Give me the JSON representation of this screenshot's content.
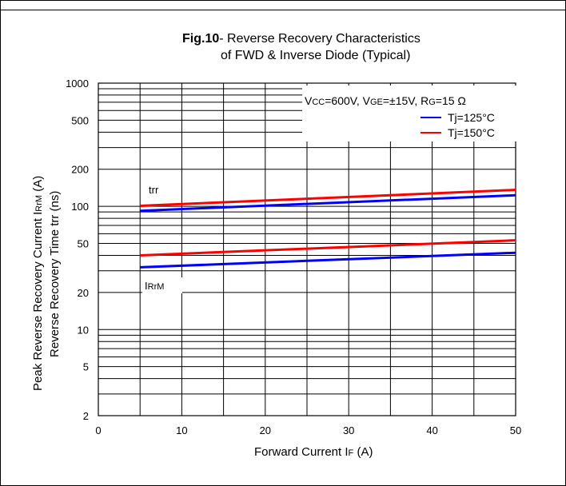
{
  "chart_data": {
    "type": "line",
    "title_bold": "Fig.10",
    "title_rest": "- Reverse Recovery Characteristics",
    "title_line2": "of FWD & Inverse Diode  (Typical)",
    "xlabel": "Forward Current I",
    "xlabel_sub": "F",
    "xlabel_unit": "  (A)",
    "ylabel_line1": "Peak Reverse Recovery Current  I",
    "ylabel_line1_sub": "RrM",
    "ylabel_line1_unit": " (A)",
    "ylabel_line2": "Reverse Recovery Time trr  (ns)",
    "xlim": [
      0,
      50
    ],
    "ylim": [
      2,
      1000
    ],
    "yscale": "log",
    "x_ticks": [
      "0",
      "10",
      "20",
      "30",
      "40",
      "50"
    ],
    "y_ticks": [
      "2",
      "5",
      "10",
      "20",
      "50",
      "100",
      "200",
      "500",
      "1000"
    ],
    "condition": {
      "vcc_label": "V",
      "vcc_sub": "CC",
      "vcc_value": "=600V, V",
      "vge_sub": "GE",
      "vge_value": "=±15V, R",
      "rg_sub": "G",
      "rg_value": "=15 Ω"
    },
    "legend": [
      "Tj=125°C",
      "Tj=150°C"
    ],
    "colors": {
      "tj125": "#0000ff",
      "tj150": "#ff0000"
    },
    "annotations": {
      "trr": "trr",
      "irrm": "I",
      "irrm_sub": "RrM"
    },
    "series": [
      {
        "name": "Tj=150°C",
        "group": "trr",
        "x": [
          5,
          50
        ],
        "y": [
          101,
          136
        ]
      },
      {
        "name": "Tj=125°C",
        "group": "trr",
        "x": [
          5,
          50
        ],
        "y": [
          92,
          123
        ]
      },
      {
        "name": "Tj=150°C",
        "group": "IrrM",
        "x": [
          5,
          50
        ],
        "y": [
          40,
          53
        ]
      },
      {
        "name": "Tj=125°C",
        "group": "IrrM",
        "x": [
          5,
          50
        ],
        "y": [
          32,
          42
        ]
      }
    ]
  }
}
